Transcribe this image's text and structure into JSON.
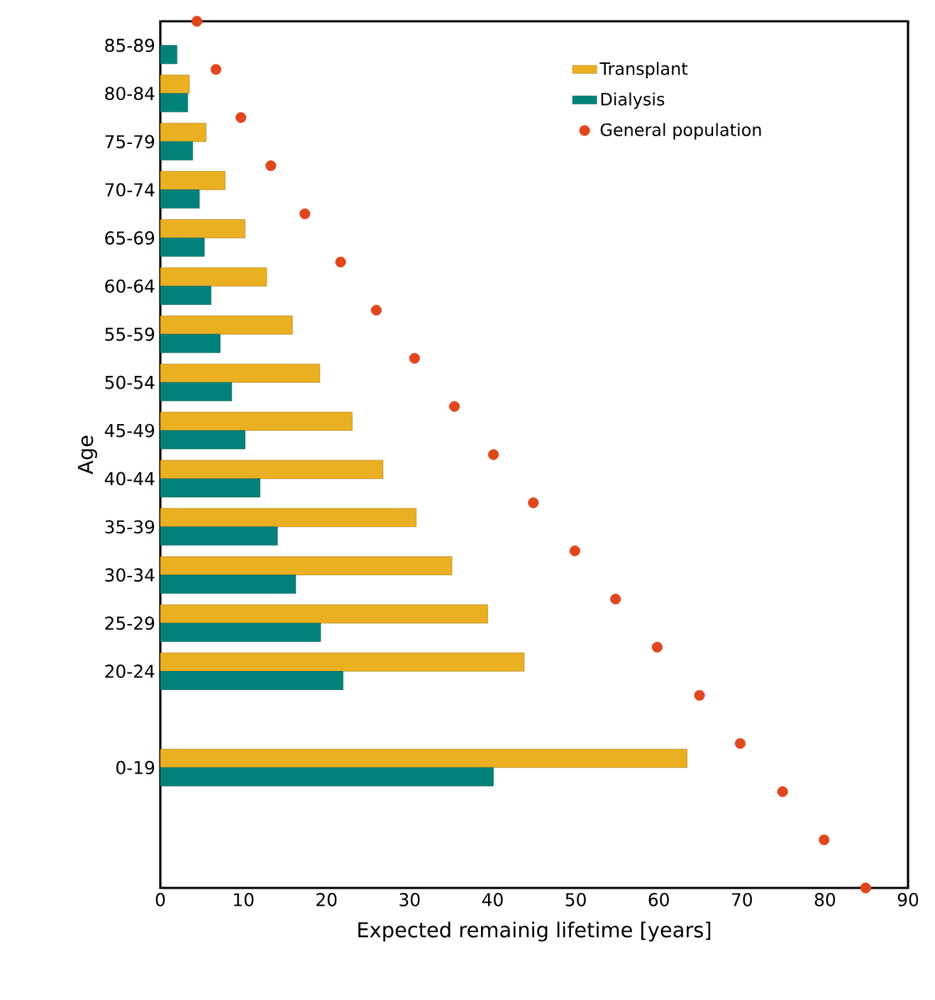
{
  "chart_data": {
    "type": "bar",
    "orientation": "horizontal",
    "xlabel": "Expected remainig lifetime [years]",
    "ylabel": "Age",
    "xlim": [
      0,
      90
    ],
    "xticks": [
      0,
      10,
      20,
      30,
      40,
      50,
      60,
      70,
      80,
      90
    ],
    "categories": [
      null,
      "85-89",
      null,
      "80-84",
      null,
      "75-79",
      null,
      "70-74",
      null,
      "65-69",
      null,
      "60-64",
      null,
      "55-59",
      null,
      "50-54",
      null,
      "45-49",
      null,
      "40-44",
      null,
      "35-39",
      null,
      "30-34",
      null,
      "25-29",
      null,
      "20-24",
      null,
      null,
      null,
      "0-19",
      null,
      null,
      null,
      null,
      null
    ],
    "legend": "top right",
    "series": [
      {
        "name": "Transplant",
        "color": "#ebb021",
        "values": [
          null,
          null,
          null,
          3.5,
          null,
          5.5,
          null,
          7.8,
          null,
          10.2,
          null,
          12.8,
          null,
          15.9,
          null,
          19.2,
          null,
          23.1,
          null,
          26.8,
          null,
          30.8,
          null,
          35.1,
          null,
          39.4,
          null,
          43.8,
          null,
          null,
          null,
          63.4,
          null,
          null,
          null,
          null,
          null
        ]
      },
      {
        "name": "Dialysis",
        "color": "#00827a",
        "values": [
          null,
          2.0,
          null,
          3.3,
          null,
          3.9,
          null,
          4.7,
          null,
          5.3,
          null,
          6.1,
          null,
          7.2,
          null,
          8.6,
          null,
          10.2,
          null,
          12.0,
          null,
          14.1,
          null,
          16.3,
          null,
          19.3,
          null,
          22.0,
          null,
          null,
          null,
          40.1,
          null,
          null,
          null,
          null,
          null
        ]
      },
      {
        "name": "General population",
        "type": "scatter",
        "marker": "circle",
        "color": "#e0471f",
        "values": [
          4.4,
          null,
          6.7,
          null,
          9.7,
          null,
          13.3,
          null,
          17.4,
          null,
          21.7,
          null,
          26.0,
          null,
          30.6,
          null,
          35.4,
          null,
          40.1,
          null,
          44.9,
          null,
          49.9,
          null,
          54.8,
          null,
          59.8,
          null,
          64.9,
          null,
          69.8,
          null,
          74.9,
          null,
          79.9,
          null,
          84.9
        ]
      }
    ]
  }
}
